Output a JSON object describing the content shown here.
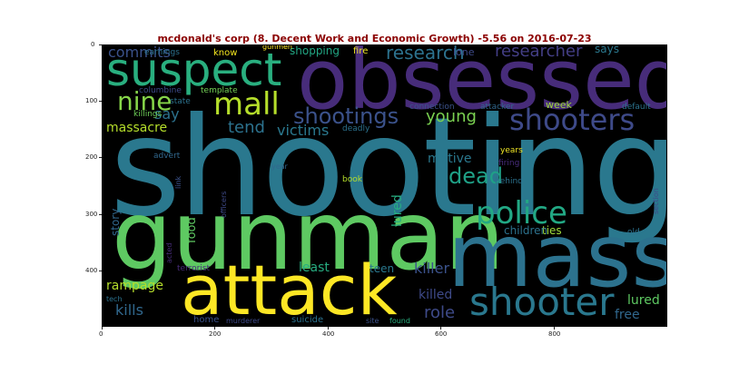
{
  "title": "mcdonald's corp (8. Decent Work and Economic Growth) -5.56 on 2016-07-23",
  "axes": {
    "x_ticks": [
      "0",
      "200",
      "400",
      "600",
      "800"
    ],
    "y_ticks": [
      "0",
      "100",
      "200",
      "300",
      "400"
    ]
  },
  "words": [
    {
      "id": "shooting",
      "text": "shooting"
    },
    {
      "id": "gunman",
      "text": "gunman"
    },
    {
      "id": "mass",
      "text": "mass"
    },
    {
      "id": "obsessed",
      "text": "obsessed"
    },
    {
      "id": "attack",
      "text": "attack"
    },
    {
      "id": "suspect",
      "text": "suspect"
    },
    {
      "id": "shooter",
      "text": "shooter"
    },
    {
      "id": "police",
      "text": "police"
    },
    {
      "id": "mall",
      "text": "mall"
    },
    {
      "id": "shooters",
      "text": "shooters"
    },
    {
      "id": "shootings",
      "text": "shootings"
    },
    {
      "id": "nine",
      "text": "nine"
    },
    {
      "id": "dead",
      "text": "dead"
    },
    {
      "id": "research",
      "text": "research"
    },
    {
      "id": "researcher",
      "text": "researcher"
    },
    {
      "id": "young",
      "text": "young"
    },
    {
      "id": "commits",
      "text": "commits"
    },
    {
      "id": "say",
      "text": "say"
    },
    {
      "id": "tend",
      "text": "tend"
    },
    {
      "id": "victims",
      "text": "victims"
    },
    {
      "id": "massacre",
      "text": "massacre"
    },
    {
      "id": "rampage",
      "text": "rampage"
    },
    {
      "id": "kills",
      "text": "kills"
    },
    {
      "id": "role",
      "text": "role"
    },
    {
      "id": "killer",
      "text": "killer"
    },
    {
      "id": "least",
      "text": "least"
    },
    {
      "id": "killed",
      "text": "killed"
    },
    {
      "id": "motive",
      "text": "motive"
    },
    {
      "id": "lured",
      "text": "lured"
    },
    {
      "id": "free",
      "text": "free"
    },
    {
      "id": "ties",
      "text": "ties"
    },
    {
      "id": "children",
      "text": "children"
    },
    {
      "id": "food",
      "text": "food"
    },
    {
      "id": "story",
      "text": "story"
    },
    {
      "id": "shopping",
      "text": "shopping"
    },
    {
      "id": "models",
      "text": "models"
    },
    {
      "id": "says",
      "text": "says"
    },
    {
      "id": "week",
      "text": "week"
    },
    {
      "id": "lone",
      "text": "lone"
    },
    {
      "id": "fire",
      "text": "fire"
    },
    {
      "id": "gunmen",
      "text": "gunmen"
    },
    {
      "id": "know",
      "text": "know"
    },
    {
      "id": "earnings",
      "text": "earnings"
    },
    {
      "id": "columbine",
      "text": "columbine"
    },
    {
      "id": "template",
      "text": "template"
    },
    {
      "id": "state",
      "text": "state"
    },
    {
      "id": "killings",
      "text": "killings"
    },
    {
      "id": "connection",
      "text": "connection"
    },
    {
      "id": "attacker",
      "text": "attacker"
    },
    {
      "id": "default",
      "text": "default"
    },
    {
      "id": "deadly",
      "text": "deadly"
    },
    {
      "id": "years",
      "text": "years"
    },
    {
      "id": "firing",
      "text": "firing"
    },
    {
      "id": "behind",
      "text": "behind"
    },
    {
      "id": "advert",
      "text": "advert"
    },
    {
      "id": "year",
      "text": "year"
    },
    {
      "id": "book",
      "text": "book"
    },
    {
      "id": "link",
      "text": "link"
    },
    {
      "id": "officers",
      "text": "officers"
    },
    {
      "id": "acted",
      "text": "acted"
    },
    {
      "id": "section",
      "text": "section"
    },
    {
      "id": "old",
      "text": "old"
    },
    {
      "id": "teen",
      "text": "teen"
    },
    {
      "id": "terrorist",
      "text": "terrorist"
    },
    {
      "id": "tech",
      "text": "tech"
    },
    {
      "id": "home",
      "text": "home"
    },
    {
      "id": "murderer",
      "text": "murderer"
    },
    {
      "id": "suicide",
      "text": "suicide"
    },
    {
      "id": "site",
      "text": "site"
    },
    {
      "id": "found",
      "text": "found"
    }
  ]
}
